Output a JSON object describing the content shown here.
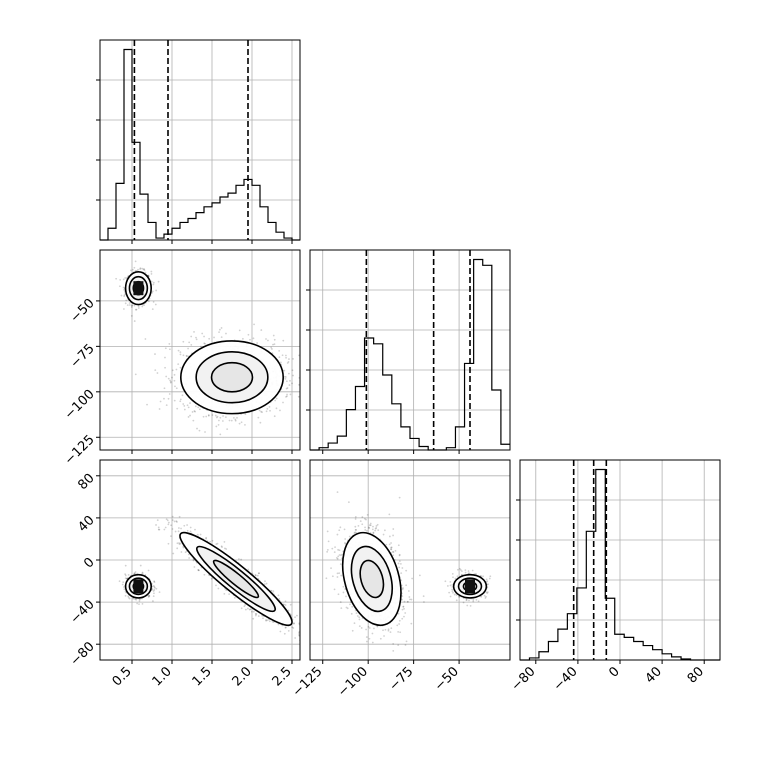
{
  "chart_data": {
    "type": "corner",
    "title": "",
    "grid": true,
    "parameters": [
      {
        "name": "",
        "range": [
          0.1,
          2.6
        ],
        "ticks": [
          0.5,
          1.0,
          1.5,
          2.0,
          2.5
        ],
        "tick_labels": [
          "0.5",
          "1.0",
          "1.5",
          "2.0",
          "2.5"
        ]
      },
      {
        "name": "",
        "range": [
          -132,
          -22
        ],
        "ticks": [
          -125,
          -100,
          -75,
          -50
        ],
        "tick_labels": [
          "−125",
          "−100",
          "−75",
          "−50"
        ]
      },
      {
        "name": "",
        "range": [
          -95,
          95
        ],
        "ticks": [
          -80,
          -40,
          0,
          40,
          80
        ],
        "tick_labels": [
          "−80",
          "−40",
          "0",
          "40",
          "80"
        ]
      }
    ],
    "histograms": [
      {
        "param": 0,
        "bin_edges": [
          0.1,
          0.2,
          0.3,
          0.4,
          0.5,
          0.6,
          0.7,
          0.8,
          0.9,
          1.0,
          1.1,
          1.2,
          1.3,
          1.4,
          1.5,
          1.6,
          1.7,
          1.8,
          1.9,
          2.0,
          2.1,
          2.2,
          2.3,
          2.4,
          2.5,
          2.6
        ],
        "counts": [
          0,
          12,
          58,
          195,
          100,
          47,
          18,
          2,
          6,
          12,
          18,
          22,
          28,
          34,
          38,
          44,
          48,
          56,
          62,
          56,
          34,
          18,
          8,
          2,
          0
        ],
        "quantiles": [
          0.53,
          0.95,
          1.95
        ]
      },
      {
        "param": 1,
        "bin_edges": [
          -132,
          -127,
          -122,
          -117,
          -112,
          -107,
          -102,
          -97,
          -92,
          -87,
          -82,
          -77,
          -72,
          -67,
          -62,
          -57,
          -52,
          -47,
          -42,
          -37,
          -32,
          -27,
          -22
        ],
        "counts": [
          0,
          2,
          6,
          12,
          35,
          55,
          97,
          92,
          65,
          40,
          20,
          10,
          3,
          0,
          0,
          2,
          20,
          75,
          165,
          160,
          52,
          5
        ],
        "quantiles": [
          -101,
          -64,
          -44
        ]
      },
      {
        "param": 2,
        "bin_edges": [
          -95,
          -86,
          -77,
          -68,
          -59,
          -50,
          -41,
          -32,
          -23,
          -14,
          -5,
          4,
          13,
          22,
          31,
          40,
          49,
          58,
          67,
          76,
          85,
          95
        ],
        "counts": [
          0,
          2,
          8,
          18,
          30,
          45,
          70,
          125,
          185,
          60,
          25,
          22,
          18,
          14,
          10,
          6,
          3,
          1,
          0,
          0,
          0
        ],
        "quantiles": [
          -44,
          -25,
          -13
        ]
      }
    ],
    "scatter_pairs": [
      {
        "x_param": 0,
        "y_param": 1,
        "clusters": [
          {
            "center": [
              0.58,
              -43
            ],
            "spread": [
              0.08,
              4.5
            ]
          },
          {
            "center": [
              1.75,
              -92
            ],
            "spread": [
              0.32,
              10
            ]
          }
        ]
      },
      {
        "x_param": 0,
        "y_param": 2,
        "clusters": [
          {
            "center": [
              0.58,
              -25
            ],
            "spread": [
              0.08,
              5.5
            ]
          },
          {
            "center": [
              1.8,
              -18
            ],
            "spread": [
              0.35,
              22
            ],
            "correlation": -0.93
          }
        ]
      },
      {
        "x_param": 1,
        "y_param": 2,
        "clusters": [
          {
            "center": [
              -44,
              -25
            ],
            "spread": [
              4.5,
              5.5
            ]
          },
          {
            "center": [
              -98,
              -18
            ],
            "spread": [
              8,
              22
            ],
            "correlation": -0.3
          }
        ]
      }
    ]
  }
}
